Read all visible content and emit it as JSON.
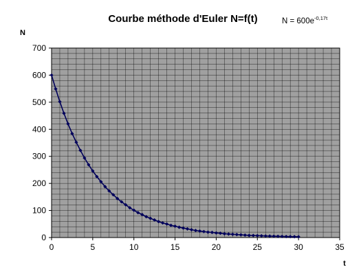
{
  "chart_data": {
    "type": "line",
    "title": "Courbe méthode d'Euler N=f(t)",
    "equation": {
      "base": "N = 600e",
      "exponent": "-0,17t"
    },
    "xlabel": "t",
    "ylabel": "N",
    "xlim": [
      0,
      35
    ],
    "ylim": [
      0,
      700
    ],
    "x_ticks": [
      "0",
      "5",
      "10",
      "15",
      "20",
      "25",
      "30",
      "35"
    ],
    "y_ticks": [
      "0",
      "100",
      "200",
      "300",
      "400",
      "500",
      "600",
      "700"
    ],
    "grid": true,
    "legend": "none",
    "plot_background": "#a0a0a0",
    "line_color": "#00005a",
    "series": [
      {
        "x": [
          0,
          0.5,
          1,
          1.5,
          2,
          2.5,
          3,
          3.5,
          4,
          4.5,
          5,
          5.5,
          6,
          6.5,
          7,
          7.5,
          8,
          8.5,
          9,
          9.5,
          10,
          10.5,
          11,
          11.5,
          12,
          12.5,
          13,
          13.5,
          14,
          14.5,
          15,
          15.5,
          16,
          16.5,
          17,
          17.5,
          18,
          18.5,
          19,
          19.5,
          20,
          20.5,
          21,
          21.5,
          22,
          22.5,
          23,
          23.5,
          24,
          24.5,
          25,
          25.5,
          26,
          26.5,
          27,
          27.5,
          28,
          28.5,
          29,
          29.5,
          30
        ],
        "values": [
          600,
          549,
          502,
          459,
          420,
          384,
          352,
          322,
          294,
          269,
          246,
          225,
          206,
          188,
          172,
          158,
          144,
          132,
          121,
          110,
          101,
          92,
          85,
          77,
          71,
          65,
          59,
          54,
          50,
          45,
          42,
          38,
          35,
          32,
          29,
          26,
          24,
          22,
          20,
          19,
          17,
          16,
          14,
          13,
          12,
          11,
          10,
          9,
          8,
          7.6,
          7,
          6.4,
          5.8,
          5.3,
          4.9,
          4.5,
          4.1,
          3.7,
          3.4,
          3.1,
          2.9
        ]
      }
    ]
  }
}
